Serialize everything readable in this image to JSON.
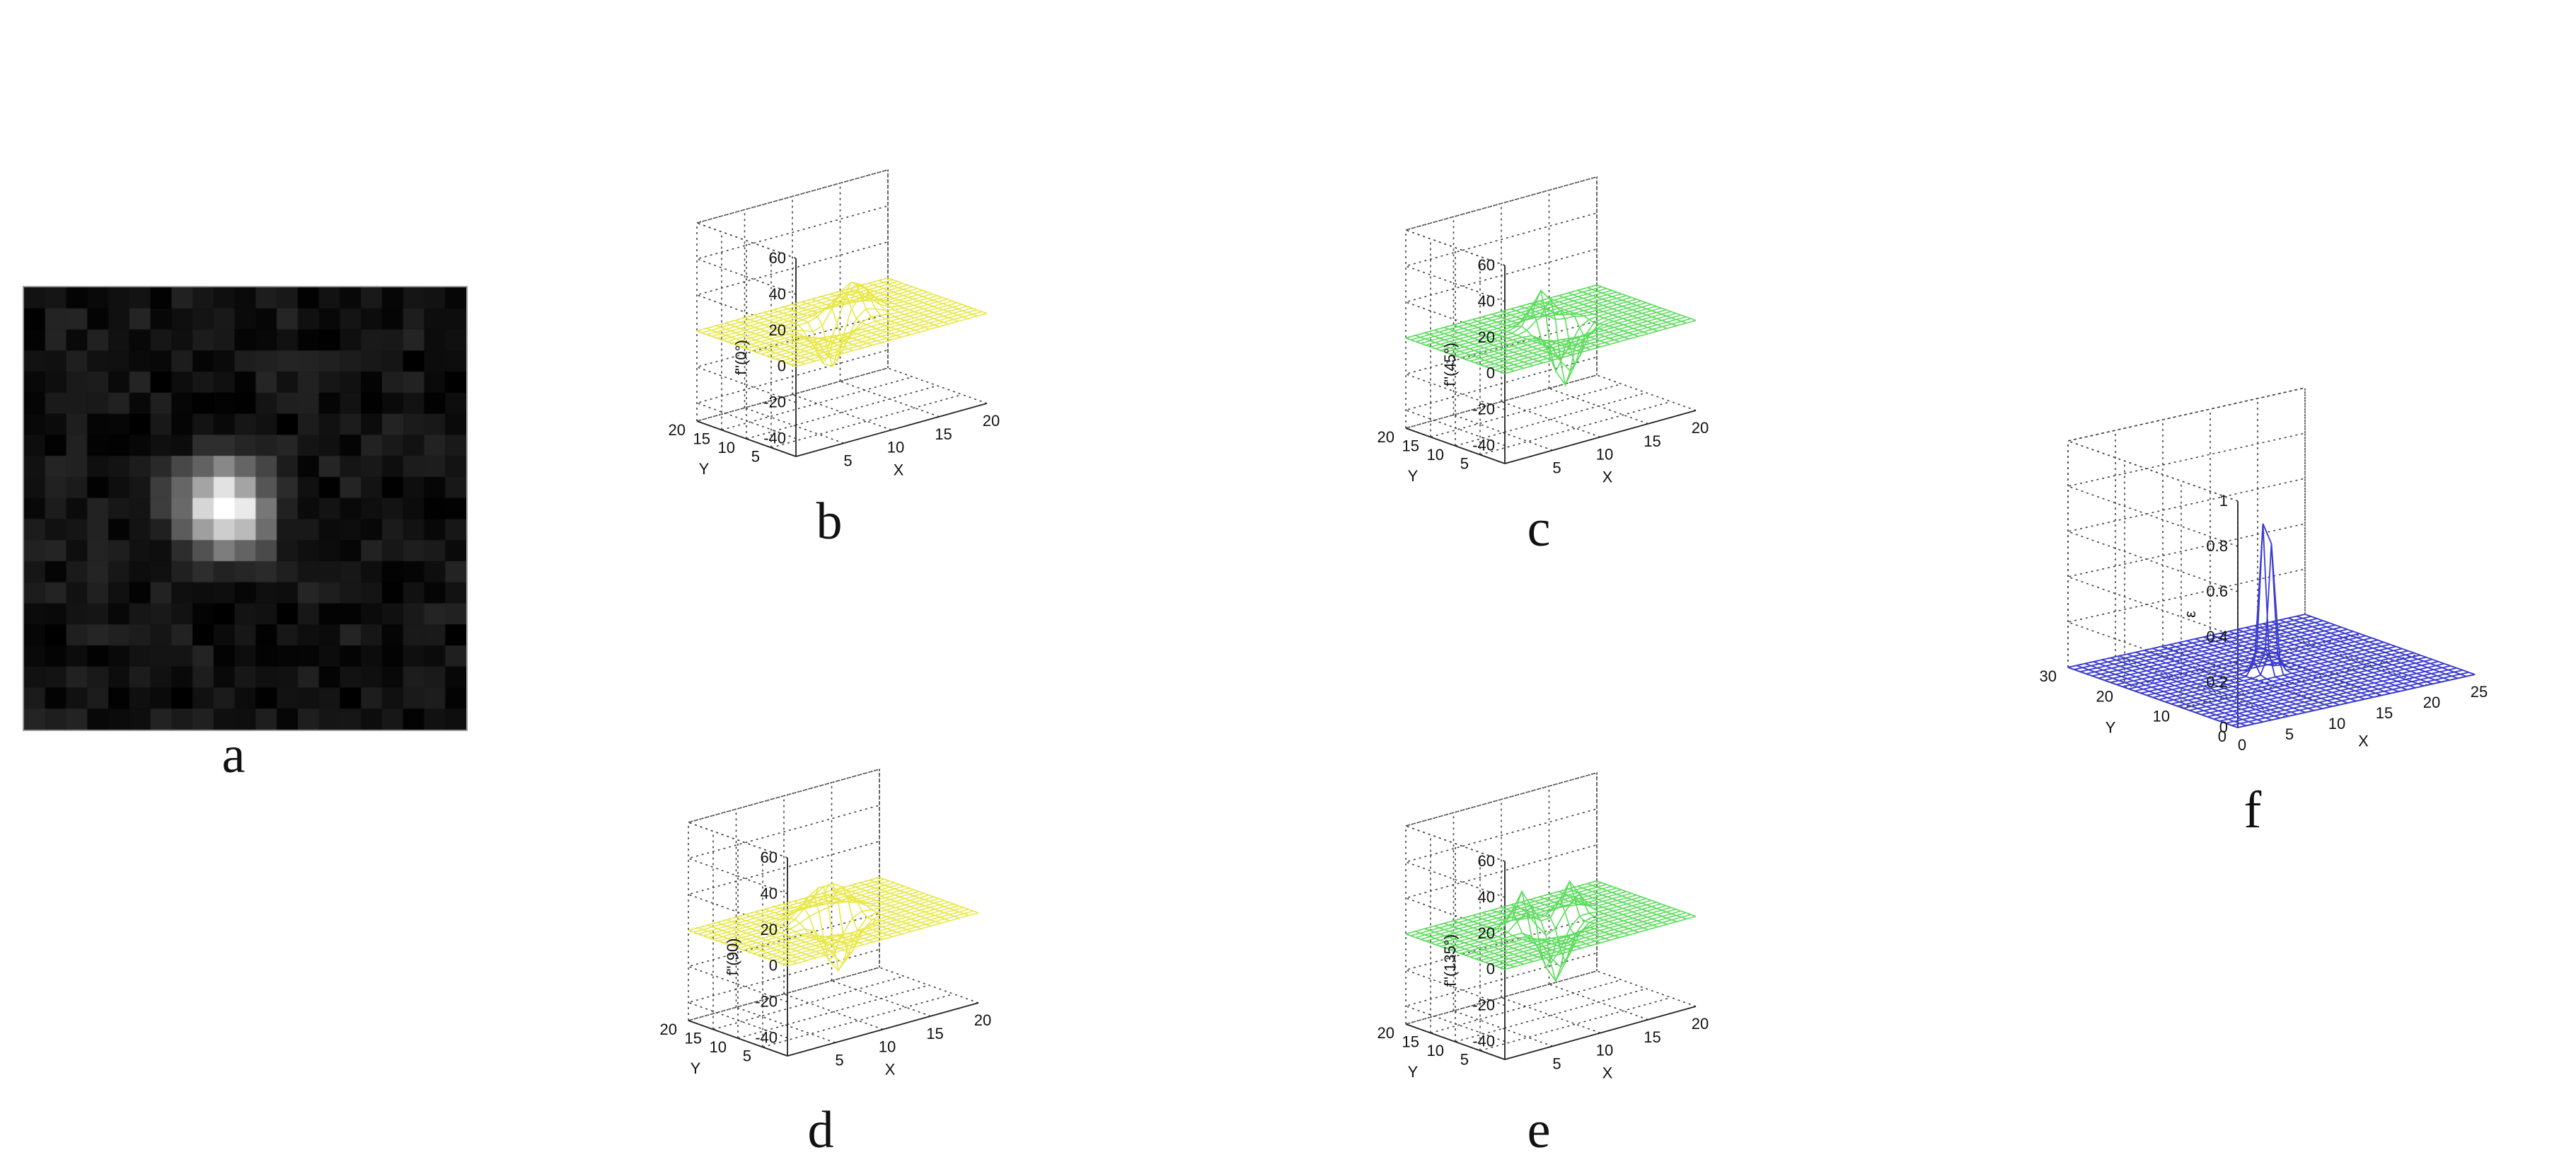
{
  "figure": {
    "panels": [
      {
        "id": "a",
        "label": "a"
      },
      {
        "id": "b",
        "label": "b"
      },
      {
        "id": "c",
        "label": "c"
      },
      {
        "id": "d",
        "label": "d"
      },
      {
        "id": "e",
        "label": "e"
      },
      {
        "id": "f",
        "label": "f"
      }
    ]
  },
  "chart_data": [
    {
      "id": "a",
      "type": "heatmap",
      "description_visible": "21x21 grayscale image with a bright spot at center-left",
      "grid_size": [
        21,
        21
      ],
      "peak": {
        "row": 10,
        "col": 9
      },
      "colors": {
        "low": "#000000",
        "high": "#ffffff"
      }
    },
    {
      "id": "b",
      "type": "surface",
      "zlabel": "f\"(0°)",
      "xlabel": "X",
      "ylabel": "Y",
      "xlim": [
        0,
        20
      ],
      "ylim": [
        0,
        20
      ],
      "zlim": [
        -50,
        60
      ],
      "x_ticks": [
        "5",
        "10",
        "15",
        "20"
      ],
      "y_ticks": [
        "5",
        "10",
        "15",
        "20"
      ],
      "z_ticks": [
        "60",
        "40",
        "20",
        "0",
        "-20",
        "-40"
      ],
      "color": "#e8e84a",
      "peak_value": 18,
      "trough_value": -30
    },
    {
      "id": "c",
      "type": "surface",
      "zlabel": "f\"(45°)",
      "xlabel": "X",
      "ylabel": "Y",
      "xlim": [
        0,
        20
      ],
      "ylim": [
        0,
        20
      ],
      "zlim": [
        -50,
        60
      ],
      "x_ticks": [
        "5",
        "10",
        "15",
        "20"
      ],
      "y_ticks": [
        "5",
        "10",
        "15",
        "20"
      ],
      "z_ticks": [
        "60",
        "40",
        "20",
        "0",
        "-20",
        "-40"
      ],
      "color": "#5ddc5d",
      "peak_value": 20,
      "trough_value": -32
    },
    {
      "id": "d",
      "type": "surface",
      "zlabel": "f\"(90)",
      "xlabel": "X",
      "ylabel": "Y",
      "xlim": [
        0,
        20
      ],
      "ylim": [
        0,
        20
      ],
      "zlim": [
        -50,
        60
      ],
      "x_ticks": [
        "5",
        "10",
        "15",
        "20"
      ],
      "y_ticks": [
        "5",
        "10",
        "15",
        "20"
      ],
      "z_ticks": [
        "60",
        "40",
        "20",
        "0",
        "-20",
        "-40"
      ],
      "color": "#e8e84a",
      "peak_value": 18,
      "trough_value": -30
    },
    {
      "id": "e",
      "type": "surface",
      "zlabel": "f\"(135°)",
      "xlabel": "X",
      "ylabel": "Y",
      "xlim": [
        0,
        20
      ],
      "ylim": [
        0,
        20
      ],
      "zlim": [
        -50,
        60
      ],
      "x_ticks": [
        "5",
        "10",
        "15",
        "20"
      ],
      "y_ticks": [
        "5",
        "10",
        "15",
        "20"
      ],
      "z_ticks": [
        "60",
        "40",
        "20",
        "0",
        "-20",
        "-40"
      ],
      "color": "#5ddc5d",
      "peak_value": 20,
      "trough_value": -30
    },
    {
      "id": "f",
      "type": "surface",
      "zlabel": "ε",
      "xlabel": "X",
      "ylabel": "Y",
      "xlim": [
        0,
        25
      ],
      "ylim": [
        0,
        30
      ],
      "zlim": [
        0,
        1
      ],
      "x_ticks": [
        "0",
        "5",
        "10",
        "15",
        "20",
        "25"
      ],
      "y_ticks": [
        "0",
        "10",
        "20",
        "30"
      ],
      "z_ticks": [
        "1",
        "0.8",
        "0.6",
        "0.4",
        "0.2",
        "0"
      ],
      "color": "#3a3ad0",
      "peak_value": 0.85
    }
  ]
}
